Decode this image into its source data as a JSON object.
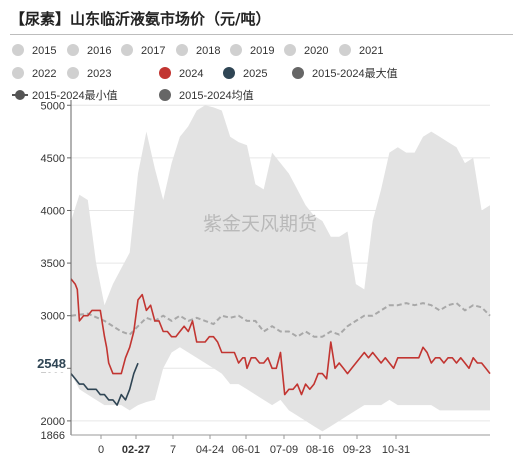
{
  "title": "【尿素】山东临沂液氨市场价（元/吨）",
  "watermark": "紫金天风期货",
  "chart_data": {
    "type": "line",
    "title": "【尿素】山东临沂液氨市场价（元/吨）",
    "ylim": [
      1866,
      5050
    ],
    "y_ticks": [
      2000,
      2500,
      3000,
      3500,
      4000,
      4500,
      5000
    ],
    "y_min_label": "1866",
    "y_cursor_label": "2548",
    "x_tick_labels": [
      "0",
      "02-27",
      "7",
      "04-24",
      "06-01",
      "07-09",
      "08-16",
      "09-23",
      "10-31"
    ],
    "x_cursor_label": "02-27",
    "legend_position": "top",
    "legend": [
      {
        "name": "2015",
        "color": "#d0d0d0",
        "marker": "circle"
      },
      {
        "name": "2016",
        "color": "#d0d0d0",
        "marker": "circle"
      },
      {
        "name": "2017",
        "color": "#d0d0d0",
        "marker": "circle"
      },
      {
        "name": "2018",
        "color": "#d0d0d0",
        "marker": "circle"
      },
      {
        "name": "2019",
        "color": "#d0d0d0",
        "marker": "circle"
      },
      {
        "name": "2020",
        "color": "#d0d0d0",
        "marker": "circle"
      },
      {
        "name": "2021",
        "color": "#d0d0d0",
        "marker": "circle"
      },
      {
        "name": "2022",
        "color": "#d0d0d0",
        "marker": "circle"
      },
      {
        "name": "2023",
        "color": "#d0d0d0",
        "marker": "circle"
      },
      {
        "name": "2024",
        "color": "#c23531",
        "marker": "circle"
      },
      {
        "name": "2025",
        "color": "#2f4554",
        "marker": "circle"
      },
      {
        "name": "2015-2024最大值",
        "color": "#666666",
        "marker": "circle"
      },
      {
        "name": "2015-2024最小值",
        "color": "#555555",
        "marker": "line"
      },
      {
        "name": "2015-2024均值",
        "color": "#666666",
        "marker": "circle"
      }
    ],
    "colors": {
      "band": "#e3e3e3",
      "s2024": "#c23531",
      "s2025": "#2f4554",
      "mean": "#a8a8a8"
    },
    "series": [
      {
        "name": "2015-2024最大值",
        "x": [
          0,
          2,
          4,
          6,
          8,
          10,
          12,
          14,
          16,
          18,
          20,
          22,
          24,
          26,
          28,
          30,
          32,
          34,
          36,
          38,
          40,
          42,
          44,
          46,
          48,
          50,
          52,
          54,
          56,
          58,
          60,
          62,
          64,
          66,
          68,
          70,
          72,
          74,
          76,
          78,
          80,
          82,
          84,
          86,
          88,
          90,
          92,
          94,
          96,
          98,
          100
        ],
        "values": [
          3900,
          4150,
          4100,
          3500,
          3100,
          3300,
          3450,
          3600,
          4350,
          4750,
          4400,
          4100,
          4450,
          4700,
          4800,
          4950,
          5000,
          4980,
          4950,
          4700,
          4650,
          4620,
          4250,
          4200,
          4550,
          4450,
          4350,
          4200,
          4050,
          3950,
          3900,
          3750,
          3750,
          3800,
          3300,
          3250,
          3900,
          4200,
          4550,
          4600,
          4550,
          4550,
          4700,
          4750,
          4700,
          4650,
          4600,
          4450,
          4500,
          4000,
          4050
        ]
      },
      {
        "name": "2015-2024最小值",
        "x": [
          0,
          2,
          4,
          6,
          8,
          10,
          12,
          14,
          16,
          18,
          20,
          22,
          24,
          26,
          28,
          30,
          32,
          34,
          36,
          38,
          40,
          42,
          44,
          46,
          48,
          50,
          52,
          54,
          56,
          58,
          60,
          62,
          64,
          66,
          68,
          70,
          72,
          74,
          76,
          78,
          80,
          82,
          84,
          86,
          88,
          90,
          92,
          94,
          96,
          98,
          100
        ],
        "values": [
          2450,
          2300,
          2250,
          2200,
          2150,
          2150,
          2150,
          2100,
          2150,
          2180,
          2200,
          2500,
          2650,
          2700,
          2650,
          2600,
          2550,
          2500,
          2450,
          2350,
          2350,
          2300,
          2250,
          2200,
          2150,
          2200,
          2100,
          2050,
          2000,
          1950,
          1900,
          1950,
          2000,
          2050,
          2100,
          2150,
          2150,
          2150,
          2200,
          2150,
          2150,
          2150,
          2150,
          2150,
          2100,
          2100,
          2100,
          2100,
          2100,
          2100,
          2100
        ]
      },
      {
        "name": "2015-2024均值",
        "x": [
          0,
          4,
          8,
          10,
          12,
          14,
          16,
          18,
          20,
          22,
          24,
          26,
          28,
          30,
          32,
          34,
          36,
          38,
          40,
          42,
          44,
          46,
          48,
          50,
          52,
          54,
          56,
          58,
          60,
          62,
          64,
          66,
          68,
          70,
          72,
          74,
          76,
          78,
          80,
          82,
          84,
          86,
          88,
          90,
          92,
          94,
          96,
          98,
          100
        ],
        "values": [
          3000,
          3020,
          2950,
          2900,
          2850,
          2820,
          2900,
          2980,
          2950,
          3000,
          2950,
          3000,
          2950,
          2980,
          2950,
          2920,
          3000,
          2980,
          3000,
          2950,
          2950,
          2850,
          2900,
          2850,
          2850,
          2800,
          2850,
          2800,
          2800,
          2850,
          2820,
          2900,
          2950,
          3000,
          3000,
          3050,
          3100,
          3100,
          3120,
          3100,
          3120,
          3100,
          3050,
          3100,
          3120,
          3050,
          3100,
          3080,
          3000
        ]
      },
      {
        "name": "2024",
        "x": [
          0,
          1,
          1.5,
          2,
          3,
          4,
          5,
          6,
          7,
          8,
          8.5,
          9,
          10,
          11,
          11.5,
          12,
          13,
          14,
          15,
          16,
          17,
          18,
          19,
          20,
          21,
          22,
          23,
          24,
          25,
          26,
          27,
          28,
          29,
          30,
          31,
          32,
          33,
          34,
          35,
          36,
          37,
          38,
          39,
          40,
          41,
          41.5,
          42,
          43,
          44,
          45,
          46,
          47,
          48,
          49,
          50,
          51,
          52,
          53,
          54,
          55,
          56,
          57,
          58,
          59,
          60,
          61,
          62,
          63,
          64,
          65,
          66,
          67,
          68,
          69,
          70,
          71,
          72,
          73,
          74,
          75,
          76,
          77,
          78,
          79,
          80,
          81,
          82,
          83,
          84,
          85,
          86,
          87,
          88,
          89,
          90,
          91,
          92,
          93,
          94,
          95,
          96,
          97,
          98,
          99,
          100
        ],
        "values": [
          3350,
          3300,
          3250,
          2950,
          3000,
          3000,
          3050,
          3050,
          3050,
          2800,
          2700,
          2550,
          2450,
          2450,
          2450,
          2450,
          2600,
          2700,
          2850,
          3150,
          3200,
          3050,
          3100,
          2950,
          2950,
          2850,
          2850,
          2800,
          2800,
          2850,
          2900,
          2850,
          2950,
          2750,
          2750,
          2750,
          2800,
          2800,
          2750,
          2650,
          2650,
          2650,
          2650,
          2550,
          2600,
          2600,
          2500,
          2600,
          2600,
          2550,
          2550,
          2600,
          2500,
          2500,
          2650,
          2250,
          2300,
          2300,
          2350,
          2250,
          2350,
          2300,
          2350,
          2450,
          2450,
          2400,
          2750,
          2500,
          2550,
          2500,
          2450,
          2500,
          2550,
          2600,
          2650,
          2600,
          2650,
          2600,
          2550,
          2600,
          2550,
          2500,
          2600,
          2600,
          2600,
          2600,
          2600,
          2600,
          2700,
          2650,
          2550,
          2600,
          2600,
          2550,
          2600,
          2600,
          2550,
          2600,
          2550,
          2500,
          2600,
          2550,
          2550,
          2500,
          2450
        ]
      },
      {
        "name": "2025",
        "x": [
          0,
          1,
          2,
          3,
          4,
          5,
          6,
          7,
          8,
          9,
          10,
          11,
          12,
          13,
          14,
          15,
          16
        ],
        "values": [
          2450,
          2400,
          2350,
          2350,
          2300,
          2300,
          2300,
          2250,
          2250,
          2200,
          2200,
          2150,
          2250,
          2200,
          2300,
          2450,
          2548
        ]
      }
    ]
  }
}
